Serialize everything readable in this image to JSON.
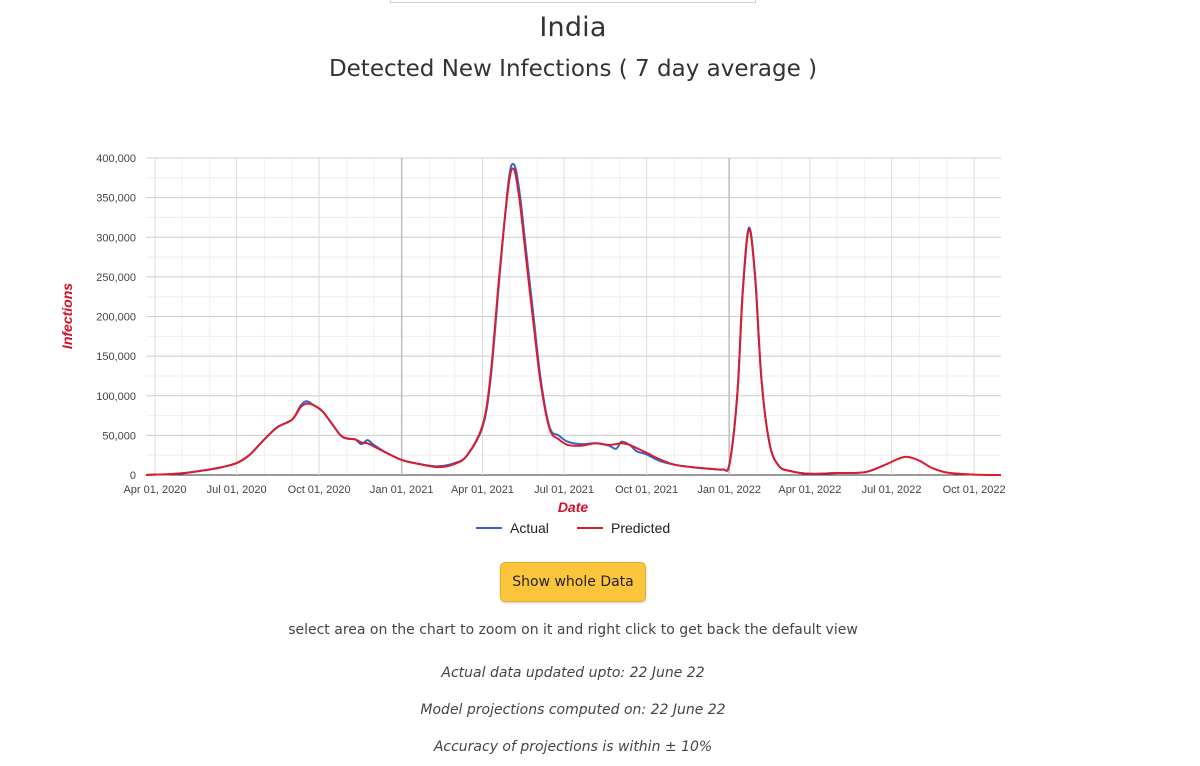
{
  "header": {
    "title": "India",
    "subtitle": "Detected New Infections ( 7 day average )"
  },
  "colors": {
    "actual": "#3366cc",
    "predicted": "#dc1c2d",
    "axis_title": "#d50f25",
    "button": "#fdc53b",
    "grid": "#dddddd"
  },
  "chart_data": {
    "type": "line",
    "xlabel": "Date",
    "ylabel": "Infections",
    "x_type": "date",
    "xlim": [
      "2020-03-22",
      "2022-10-31"
    ],
    "ylim": [
      0,
      400000
    ],
    "y_ticks": [
      0,
      50000,
      100000,
      150000,
      200000,
      250000,
      300000,
      350000,
      400000
    ],
    "y_tick_labels": [
      "0",
      "50,000",
      "100,000",
      "150,000",
      "200,000",
      "250,000",
      "300,000",
      "350,000",
      "400,000"
    ],
    "x_ticks": [
      "2020-04-01",
      "2020-07-01",
      "2020-10-01",
      "2021-01-01",
      "2021-04-01",
      "2021-07-01",
      "2021-10-01",
      "2022-01-01",
      "2022-04-01",
      "2022-07-01",
      "2022-10-01"
    ],
    "x_tick_labels": [
      "Apr 01, 2020",
      "Jul 01, 2020",
      "Oct 01, 2020",
      "Jan 01, 2021",
      "Apr 01, 2021",
      "Jul 01, 2021",
      "Oct 01, 2021",
      "Jan 01, 2022",
      "Apr 01, 2022",
      "Jul 01, 2022",
      "Oct 01, 2022"
    ],
    "grid": true,
    "legend_position": "bottom",
    "series": [
      {
        "name": "Actual",
        "color": "#3366cc",
        "points": [
          [
            "2020-03-22",
            0
          ],
          [
            "2020-04-01",
            500
          ],
          [
            "2020-04-15",
            1000
          ],
          [
            "2020-05-01",
            2000
          ],
          [
            "2020-05-15",
            4000
          ],
          [
            "2020-06-01",
            7000
          ],
          [
            "2020-06-15",
            10000
          ],
          [
            "2020-07-01",
            15000
          ],
          [
            "2020-07-15",
            25000
          ],
          [
            "2020-08-01",
            45000
          ],
          [
            "2020-08-15",
            60000
          ],
          [
            "2020-09-01",
            70000
          ],
          [
            "2020-09-10",
            87000
          ],
          [
            "2020-09-17",
            93000
          ],
          [
            "2020-09-25",
            88000
          ],
          [
            "2020-10-05",
            80000
          ],
          [
            "2020-10-15",
            65000
          ],
          [
            "2020-10-25",
            50000
          ],
          [
            "2020-11-01",
            46000
          ],
          [
            "2020-11-10",
            45000
          ],
          [
            "2020-11-17",
            39000
          ],
          [
            "2020-11-24",
            44000
          ],
          [
            "2020-12-01",
            38000
          ],
          [
            "2020-12-15",
            28000
          ],
          [
            "2021-01-01",
            19000
          ],
          [
            "2021-01-20",
            14000
          ],
          [
            "2021-02-10",
            11000
          ],
          [
            "2021-03-01",
            15000
          ],
          [
            "2021-03-15",
            25000
          ],
          [
            "2021-04-01",
            60000
          ],
          [
            "2021-04-10",
            120000
          ],
          [
            "2021-04-20",
            250000
          ],
          [
            "2021-04-30",
            370000
          ],
          [
            "2021-05-06",
            392000
          ],
          [
            "2021-05-12",
            360000
          ],
          [
            "2021-05-20",
            280000
          ],
          [
            "2021-05-27",
            210000
          ],
          [
            "2021-06-05",
            120000
          ],
          [
            "2021-06-15",
            60000
          ],
          [
            "2021-06-25",
            50000
          ],
          [
            "2021-07-05",
            42000
          ],
          [
            "2021-07-20",
            39000
          ],
          [
            "2021-08-05",
            40000
          ],
          [
            "2021-08-20",
            37000
          ],
          [
            "2021-08-28",
            33000
          ],
          [
            "2021-09-03",
            42000
          ],
          [
            "2021-09-12",
            38000
          ],
          [
            "2021-09-20",
            30000
          ],
          [
            "2021-10-01",
            26000
          ],
          [
            "2021-10-15",
            18000
          ],
          [
            "2021-11-01",
            13000
          ],
          [
            "2021-11-20",
            10000
          ],
          [
            "2021-12-10",
            8000
          ],
          [
            "2021-12-25",
            7000
          ],
          [
            "2022-01-01",
            12000
          ],
          [
            "2022-01-10",
            100000
          ],
          [
            "2022-01-16",
            230000
          ],
          [
            "2022-01-23",
            312000
          ],
          [
            "2022-01-30",
            250000
          ],
          [
            "2022-02-06",
            120000
          ],
          [
            "2022-02-15",
            40000
          ],
          [
            "2022-02-25",
            12000
          ],
          [
            "2022-03-10",
            5000
          ],
          [
            "2022-04-01",
            1500
          ],
          [
            "2022-05-01",
            2500
          ],
          [
            "2022-06-01",
            3500
          ],
          [
            "2022-06-22",
            12000
          ]
        ]
      },
      {
        "name": "Predicted",
        "color": "#dc1c2d",
        "points": [
          [
            "2020-03-22",
            0
          ],
          [
            "2020-04-01",
            500
          ],
          [
            "2020-04-15",
            1000
          ],
          [
            "2020-05-01",
            2200
          ],
          [
            "2020-05-15",
            4000
          ],
          [
            "2020-06-01",
            7000
          ],
          [
            "2020-06-15",
            10000
          ],
          [
            "2020-07-01",
            15000
          ],
          [
            "2020-07-15",
            25000
          ],
          [
            "2020-08-01",
            45000
          ],
          [
            "2020-08-15",
            60000
          ],
          [
            "2020-09-01",
            70000
          ],
          [
            "2020-09-10",
            85000
          ],
          [
            "2020-09-17",
            90000
          ],
          [
            "2020-09-25",
            88000
          ],
          [
            "2020-10-05",
            80000
          ],
          [
            "2020-10-15",
            65000
          ],
          [
            "2020-10-25",
            50000
          ],
          [
            "2020-11-01",
            46000
          ],
          [
            "2020-11-10",
            45000
          ],
          [
            "2020-11-17",
            41000
          ],
          [
            "2020-11-24",
            40000
          ],
          [
            "2020-12-01",
            36000
          ],
          [
            "2020-12-15",
            28000
          ],
          [
            "2021-01-01",
            19000
          ],
          [
            "2021-01-20",
            14000
          ],
          [
            "2021-02-10",
            10000
          ],
          [
            "2021-03-01",
            14000
          ],
          [
            "2021-03-15",
            25000
          ],
          [
            "2021-04-01",
            62000
          ],
          [
            "2021-04-10",
            125000
          ],
          [
            "2021-04-20",
            255000
          ],
          [
            "2021-04-30",
            365000
          ],
          [
            "2021-05-06",
            386000
          ],
          [
            "2021-05-12",
            350000
          ],
          [
            "2021-05-20",
            270000
          ],
          [
            "2021-05-27",
            200000
          ],
          [
            "2021-06-05",
            115000
          ],
          [
            "2021-06-15",
            58000
          ],
          [
            "2021-06-25",
            45000
          ],
          [
            "2021-07-05",
            38000
          ],
          [
            "2021-07-20",
            37000
          ],
          [
            "2021-08-05",
            40000
          ],
          [
            "2021-08-20",
            38000
          ],
          [
            "2021-08-28",
            39000
          ],
          [
            "2021-09-03",
            40000
          ],
          [
            "2021-09-12",
            38000
          ],
          [
            "2021-09-20",
            34000
          ],
          [
            "2021-10-01",
            28000
          ],
          [
            "2021-10-15",
            20000
          ],
          [
            "2021-11-01",
            13000
          ],
          [
            "2021-11-20",
            10000
          ],
          [
            "2021-12-10",
            8000
          ],
          [
            "2021-12-25",
            7000
          ],
          [
            "2022-01-01",
            12000
          ],
          [
            "2022-01-10",
            100000
          ],
          [
            "2022-01-16",
            228000
          ],
          [
            "2022-01-23",
            310000
          ],
          [
            "2022-01-30",
            248000
          ],
          [
            "2022-02-06",
            120000
          ],
          [
            "2022-02-15",
            40000
          ],
          [
            "2022-02-25",
            12000
          ],
          [
            "2022-03-10",
            5000
          ],
          [
            "2022-04-01",
            1500
          ],
          [
            "2022-05-01",
            2500
          ],
          [
            "2022-06-01",
            3500
          ],
          [
            "2022-06-22",
            12000
          ],
          [
            "2022-07-08",
            20000
          ],
          [
            "2022-07-18",
            23000
          ],
          [
            "2022-08-01",
            18000
          ],
          [
            "2022-08-15",
            9000
          ],
          [
            "2022-09-01",
            3000
          ],
          [
            "2022-10-01",
            500
          ],
          [
            "2022-10-31",
            0
          ]
        ]
      }
    ]
  },
  "controls": {
    "show_whole_data_label": "Show whole Data"
  },
  "hint_text": "select area on the chart to zoom on it and right click to get back the default view",
  "notes": {
    "updated": "Actual data updated upto: 22 June 22",
    "computed": "Model projections computed on: 22 June 22",
    "accuracy": "Accuracy of projections is within ± 10%"
  }
}
